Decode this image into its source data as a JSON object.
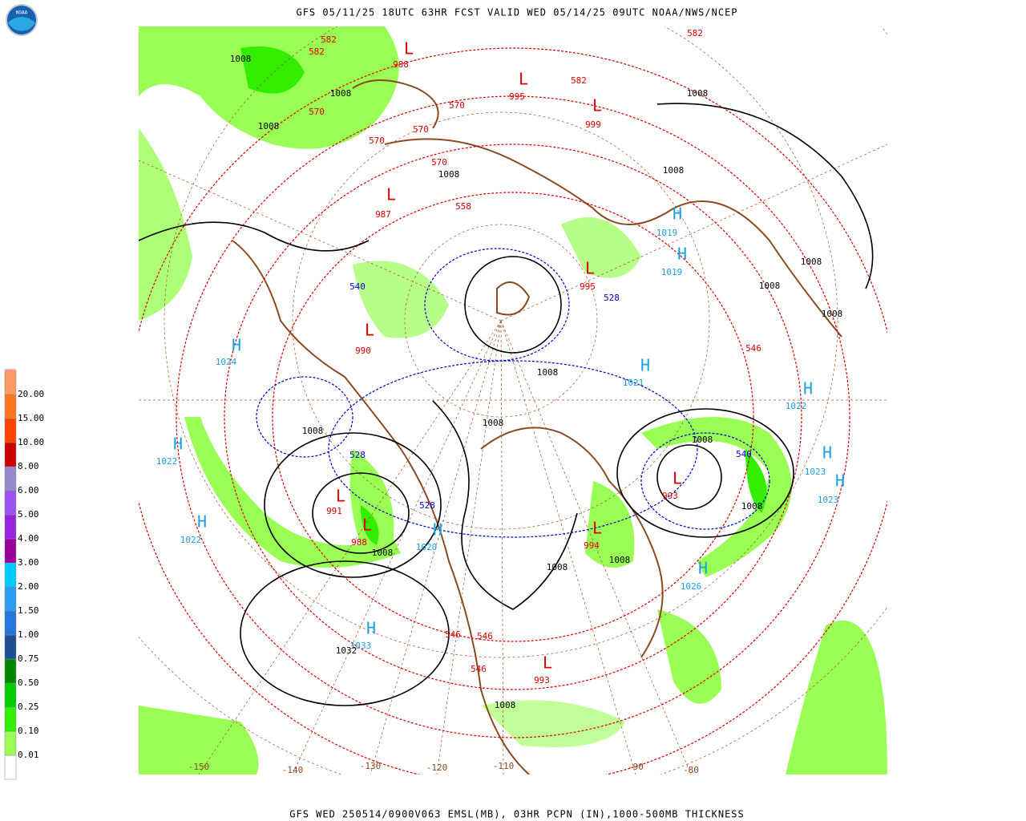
{
  "logo": "NOAA",
  "header": {
    "title": "GFS 05/11/25 18UTC 63HR FCST VALID WED 05/14/25 09UTC NOAA/NWS/NCEP"
  },
  "footer": "GFS WED 250514/0900V063 EMSL(MB), 03HR PCPN (IN),1000-500MB THICKNESS",
  "colors": {
    "high": "#1aa0dc",
    "low": "#dd0000",
    "isobar": "#000000",
    "warm": "#dd0000",
    "cold": "#0000cc",
    "longitude": "#8b4a22"
  },
  "highs": [
    {
      "mark": "H",
      "value": 1024
    },
    {
      "mark": "H",
      "value": 1022
    },
    {
      "mark": "H",
      "value": 1022
    },
    {
      "mark": "H",
      "value": 1033
    },
    {
      "mark": "H",
      "value": 1021
    },
    {
      "mark": "H",
      "value": 1022
    },
    {
      "mark": "H",
      "value": 1023
    },
    {
      "mark": "H",
      "value": 1023
    },
    {
      "mark": "H",
      "value": 1026
    },
    {
      "mark": "H",
      "value": 1020
    },
    {
      "mark": "H",
      "value": 1019
    },
    {
      "mark": "H",
      "value": 1019
    }
  ],
  "lows": [
    {
      "mark": "L",
      "value": 988
    },
    {
      "mark": "L",
      "value": 995
    },
    {
      "mark": "L",
      "value": 999
    },
    {
      "mark": "L",
      "value": 987
    },
    {
      "mark": "L",
      "value": 990
    },
    {
      "mark": "L",
      "value": 991
    },
    {
      "mark": "L",
      "value": 988
    },
    {
      "mark": "L",
      "value": 993
    },
    {
      "mark": "L",
      "value": 994
    },
    {
      "mark": "L",
      "value": 993
    },
    {
      "mark": "L",
      "value": 995
    }
  ],
  "isobar_labels": [
    1008,
    1008,
    1008,
    1008,
    1008,
    1008,
    1008,
    1008,
    1008,
    1008,
    1008,
    1008,
    1008,
    1008,
    1008,
    1008,
    1008,
    1008,
    1032
  ],
  "thickness_labels_warm": [
    582,
    582,
    582,
    582,
    570,
    570,
    570,
    570,
    570,
    558,
    546,
    546,
    546,
    546
  ],
  "thickness_labels_cold": [
    540,
    528,
    528,
    528,
    540
  ],
  "longitude_labels": [
    -150,
    -140,
    -130,
    -120,
    -110,
    -90,
    -80
  ],
  "legend": {
    "levels": [
      {
        "label": "0.01",
        "color": "#99ff55"
      },
      {
        "label": "0.10",
        "color": "#33ee00"
      },
      {
        "label": "0.25",
        "color": "#00cc00"
      },
      {
        "label": "0.50",
        "color": "#008800"
      },
      {
        "label": "0.75",
        "color": "#1c4f8f"
      },
      {
        "label": "1.00",
        "color": "#2677dd"
      },
      {
        "label": "1.50",
        "color": "#2e9cf0"
      },
      {
        "label": "2.00",
        "color": "#00ccff"
      },
      {
        "label": "3.00",
        "color": "#990099"
      },
      {
        "label": "4.00",
        "color": "#9922dd"
      },
      {
        "label": "5.00",
        "color": "#9955ee"
      },
      {
        "label": "6.00",
        "color": "#9988cc"
      },
      {
        "label": "8.00",
        "color": "#cc0000"
      },
      {
        "label": "10.00",
        "color": "#ff4400"
      },
      {
        "label": "15.00",
        "color": "#ff7722"
      },
      {
        "label": "20.00",
        "color": "#ff9966"
      }
    ],
    "base_color": "#ffffff",
    "top_color": "#ffb0c0"
  }
}
